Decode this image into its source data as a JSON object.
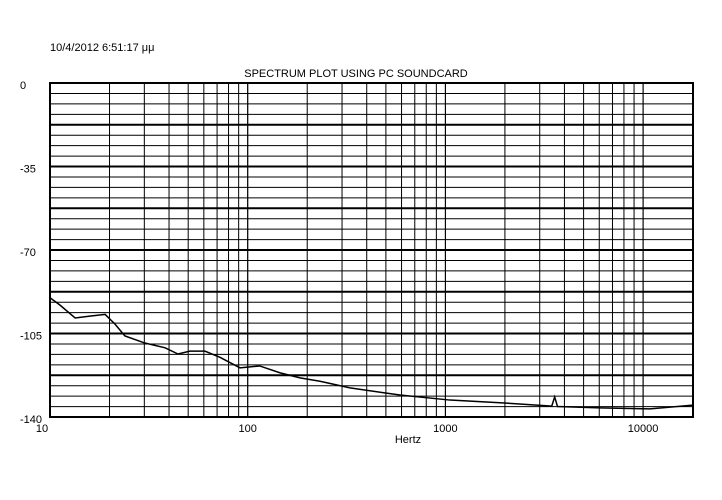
{
  "timestamp": "10/4/2012 6:51:17 μμ",
  "chart_data": {
    "type": "line",
    "title": "SPECTRUM PLOT USING PC SOUNDCARD",
    "x_label": "Hertz",
    "x_scale": "log",
    "grid": true,
    "color": "#000000",
    "xlim": [
      10,
      17880
    ],
    "ylim": [
      -140,
      0
    ],
    "xticks": [
      10,
      100,
      1000,
      10000
    ],
    "xgrid": [
      20,
      30,
      40,
      50,
      60,
      70,
      80,
      90,
      100,
      200,
      300,
      400,
      500,
      600,
      700,
      800,
      900,
      1000,
      2000,
      3000,
      4000,
      5000,
      6000,
      7000,
      8000,
      9000,
      10000
    ],
    "yticks": [
      0,
      -35,
      -70,
      -105,
      -140
    ],
    "ygrid": [
      0,
      -4.375,
      -8.75,
      -13.125,
      -17.5,
      -21.875,
      -26.25,
      -30.625,
      -35,
      -39.375,
      -43.75,
      -48.125,
      -52.5,
      -56.875,
      -61.25,
      -65.625,
      -70,
      -74.375,
      -78.75,
      -83.125,
      -87.5,
      -91.875,
      -96.25,
      -100.625,
      -105,
      -109.375,
      -113.75,
      -118.125,
      -122.5,
      -126.875,
      -131.25,
      -135.625,
      -140
    ],
    "x": [
      10,
      11.2,
      13.4,
      15.9,
      19.0,
      21.3,
      23.9,
      30.2,
      38.2,
      44.4,
      51.0,
      60.8,
      72.4,
      91.4,
      115,
      146,
      184,
      232,
      329,
      589,
      1054,
      1888,
      3381,
      3450,
      3570,
      3690,
      6053,
      10840,
      17880
    ],
    "values": [
      -90,
      -93,
      -98.5,
      -97.7,
      -97,
      -101,
      -106,
      -109,
      -111,
      -113.6,
      -112.4,
      -112.4,
      -115,
      -119.4,
      -118.6,
      -121.5,
      -123.6,
      -125,
      -127.8,
      -130.8,
      -132.9,
      -134,
      -135.4,
      -135.5,
      -131.6,
      -135.6,
      -136.2,
      -136.6,
      -135
    ]
  }
}
